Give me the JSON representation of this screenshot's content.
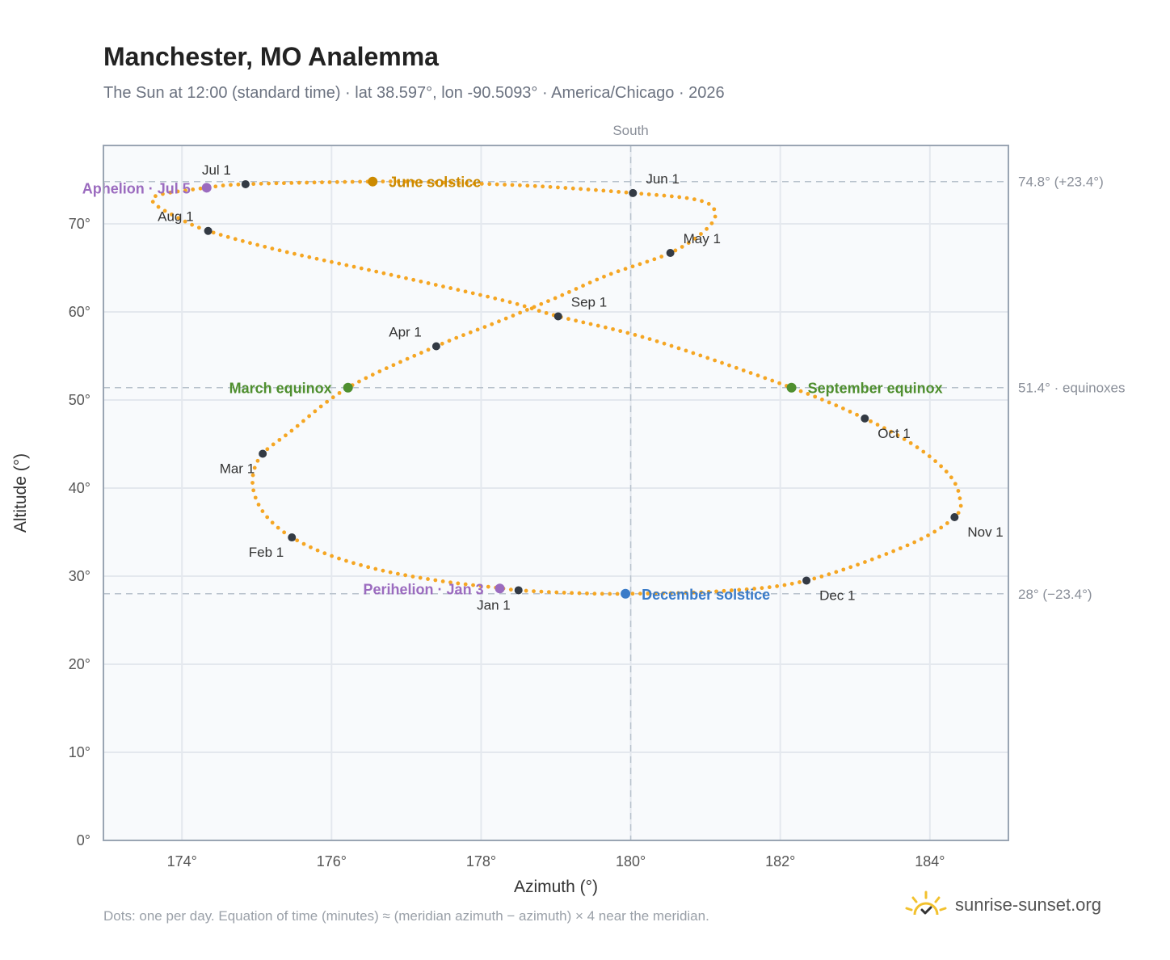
{
  "header": {
    "title": "Manchester, MO Analemma",
    "subtitle": "The Sun at 12:00 (standard time) · lat 38.597°, lon -90.5093° · America/Chicago · 2026"
  },
  "footer": {
    "note": "Dots: one per day. Equation of time (minutes) ≈ (meridian azimuth − azimuth) × 4 near the meridian.",
    "brand": "sunrise-sunset.org"
  },
  "colors": {
    "path": "#f5a623",
    "month_marker": "#333a44",
    "june_solstice": "#cc8a00",
    "december_solstice": "#3a7bc8",
    "equinox": "#4f8f2f",
    "apsis": "#9b6bbf",
    "grid": "#e4e8ee",
    "reference_line": "#b8c2cc",
    "plot_background": "#f8fafc",
    "plot_border": "#9aa5b3"
  },
  "chart_data": {
    "type": "scatter",
    "title": "Manchester, MO Analemma",
    "xlabel": "Azimuth (°)",
    "ylabel": "Altitude (°)",
    "xlim": [
      172.95,
      185.05
    ],
    "ylim": [
      0,
      78.9
    ],
    "x_ticks": [
      174,
      176,
      178,
      180,
      182,
      184
    ],
    "x_tick_labels": [
      "174°",
      "176°",
      "178°",
      "180°",
      "182°",
      "184°"
    ],
    "y_ticks": [
      0,
      10,
      20,
      30,
      40,
      50,
      60,
      70
    ],
    "y_tick_labels": [
      "0°",
      "10°",
      "20°",
      "30°",
      "40°",
      "50°",
      "60°",
      "70°"
    ],
    "grid": true,
    "meridian": {
      "azimuth": 180,
      "label": "South"
    },
    "reference_lines": [
      {
        "altitude": 74.8,
        "label": "74.8° (+23.4°)"
      },
      {
        "altitude": 51.4,
        "label": "51.4° · equinoxes"
      },
      {
        "altitude": 28,
        "label": "28° (−23.4°)"
      }
    ],
    "month_markers": [
      {
        "label": "Jan 1",
        "az": 178.5,
        "alt": 28.4,
        "pos": "below-left"
      },
      {
        "label": "Feb 1",
        "az": 175.47,
        "alt": 34.4,
        "pos": "below-left"
      },
      {
        "label": "Mar 1",
        "az": 175.08,
        "alt": 43.9,
        "pos": "below-left"
      },
      {
        "label": "Apr 1",
        "az": 177.4,
        "alt": 56.1,
        "pos": "above-left"
      },
      {
        "label": "May 1",
        "az": 180.53,
        "alt": 66.7,
        "pos": "above-right"
      },
      {
        "label": "Jun 1",
        "az": 180.03,
        "alt": 73.5,
        "pos": "above-right"
      },
      {
        "label": "Jul 1",
        "az": 174.85,
        "alt": 74.5,
        "pos": "above-left"
      },
      {
        "label": "Aug 1",
        "az": 174.35,
        "alt": 69.2,
        "pos": "above-left"
      },
      {
        "label": "Sep 1",
        "az": 179.03,
        "alt": 59.5,
        "pos": "above-right"
      },
      {
        "label": "Oct 1",
        "az": 183.13,
        "alt": 47.9,
        "pos": "below-right"
      },
      {
        "label": "Nov 1",
        "az": 184.33,
        "alt": 36.7,
        "pos": "below-right"
      },
      {
        "label": "Dec 1",
        "az": 182.35,
        "alt": 29.5,
        "pos": "below-right"
      }
    ],
    "events": [
      {
        "label": "June solstice",
        "az": 176.55,
        "alt": 74.8,
        "color_key": "june_solstice",
        "pos": "right"
      },
      {
        "label": "December solstice",
        "az": 179.93,
        "alt": 28.0,
        "color_key": "december_solstice",
        "pos": "right"
      },
      {
        "label": "March equinox",
        "az": 176.22,
        "alt": 51.4,
        "color_key": "equinox",
        "pos": "left"
      },
      {
        "label": "September equinox",
        "az": 182.15,
        "alt": 51.4,
        "color_key": "equinox",
        "pos": "right"
      },
      {
        "label": "Perihelion · Jan 3",
        "az": 178.25,
        "alt": 28.6,
        "color_key": "apsis",
        "pos": "left"
      },
      {
        "label": "Aphelion · Jul 5",
        "az": 174.33,
        "alt": 74.1,
        "color_key": "apsis",
        "pos": "left"
      }
    ],
    "series": [
      {
        "points": [
          [
            178.5,
            28.4
          ],
          [
            178.2,
            28.7
          ],
          [
            177.5,
            29.4
          ],
          [
            176.7,
            30.6
          ],
          [
            176.0,
            32.3
          ],
          [
            175.47,
            34.4
          ],
          [
            175.15,
            36.6
          ],
          [
            174.98,
            39.0
          ],
          [
            174.95,
            41.5
          ],
          [
            175.08,
            43.9
          ],
          [
            175.45,
            46.4
          ],
          [
            176.22,
            51.4
          ],
          [
            177.4,
            56.1
          ],
          [
            178.2,
            58.8
          ],
          [
            179.0,
            61.6
          ],
          [
            179.7,
            64.2
          ],
          [
            180.53,
            66.7
          ],
          [
            181.0,
            69.3
          ],
          [
            181.13,
            71.3
          ],
          [
            180.9,
            72.7
          ],
          [
            180.03,
            73.5
          ],
          [
            178.7,
            74.3
          ],
          [
            177.4,
            74.7
          ],
          [
            176.55,
            74.8
          ],
          [
            174.85,
            74.5
          ],
          [
            174.33,
            74.1
          ],
          [
            173.7,
            73.3
          ],
          [
            173.62,
            72.4
          ],
          [
            173.9,
            70.9
          ],
          [
            174.35,
            69.2
          ],
          [
            175.3,
            67.0
          ],
          [
            176.8,
            64.2
          ],
          [
            178.3,
            61.3
          ],
          [
            179.03,
            59.5
          ],
          [
            180.3,
            56.8
          ],
          [
            182.15,
            51.4
          ],
          [
            183.13,
            47.9
          ],
          [
            183.8,
            44.8
          ],
          [
            184.25,
            41.6
          ],
          [
            184.4,
            38.9
          ],
          [
            184.33,
            36.7
          ],
          [
            183.7,
            33.5
          ],
          [
            182.35,
            29.5
          ],
          [
            181.2,
            28.3
          ],
          [
            179.93,
            28.0
          ],
          [
            179.2,
            28.1
          ],
          [
            178.5,
            28.4
          ]
        ]
      }
    ]
  }
}
